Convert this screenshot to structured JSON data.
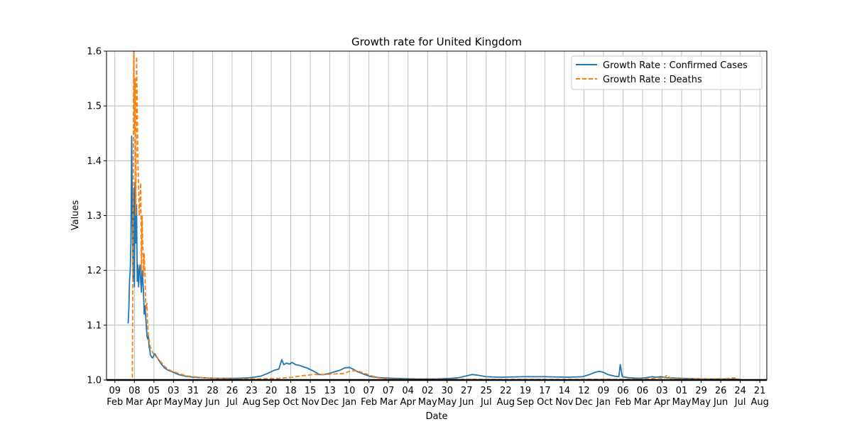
{
  "chart_data": {
    "type": "line",
    "title": "Growth rate for United Kingdom",
    "xlabel": "Date",
    "ylabel": "Values",
    "ylim": [
      1.0,
      1.6
    ],
    "xlim": [
      "2020-01-28",
      "2022-08-31"
    ],
    "yticks": [
      "1.0",
      "1.1",
      "1.2",
      "1.3",
      "1.4",
      "1.5",
      "1.6"
    ],
    "grid": true,
    "legend_position": "top-right",
    "xticks": [
      {
        "date": "2020-02-09",
        "day": "09",
        "month": "Feb"
      },
      {
        "date": "2020-03-08",
        "day": "08",
        "month": "Mar"
      },
      {
        "date": "2020-04-05",
        "day": "05",
        "month": "Apr"
      },
      {
        "date": "2020-05-03",
        "day": "03",
        "month": "May"
      },
      {
        "date": "2020-05-31",
        "day": "31",
        "month": "May"
      },
      {
        "date": "2020-06-28",
        "day": "28",
        "month": "Jun"
      },
      {
        "date": "2020-07-26",
        "day": "26",
        "month": "Jul"
      },
      {
        "date": "2020-08-23",
        "day": "23",
        "month": "Aug"
      },
      {
        "date": "2020-09-20",
        "day": "20",
        "month": "Sep"
      },
      {
        "date": "2020-10-18",
        "day": "18",
        "month": "Oct"
      },
      {
        "date": "2020-11-15",
        "day": "15",
        "month": "Nov"
      },
      {
        "date": "2020-12-13",
        "day": "13",
        "month": "Dec"
      },
      {
        "date": "2021-01-10",
        "day": "10",
        "month": "Jan"
      },
      {
        "date": "2021-02-07",
        "day": "07",
        "month": "Feb"
      },
      {
        "date": "2021-03-07",
        "day": "07",
        "month": "Mar"
      },
      {
        "date": "2021-04-04",
        "day": "04",
        "month": "Apr"
      },
      {
        "date": "2021-05-02",
        "day": "02",
        "month": "May"
      },
      {
        "date": "2021-05-30",
        "day": "30",
        "month": "May"
      },
      {
        "date": "2021-06-27",
        "day": "27",
        "month": "Jun"
      },
      {
        "date": "2021-07-25",
        "day": "25",
        "month": "Jul"
      },
      {
        "date": "2021-08-22",
        "day": "22",
        "month": "Aug"
      },
      {
        "date": "2021-09-19",
        "day": "19",
        "month": "Sep"
      },
      {
        "date": "2021-10-17",
        "day": "17",
        "month": "Oct"
      },
      {
        "date": "2021-11-14",
        "day": "14",
        "month": "Nov"
      },
      {
        "date": "2021-12-12",
        "day": "12",
        "month": "Dec"
      },
      {
        "date": "2022-01-09",
        "day": "09",
        "month": "Jan"
      },
      {
        "date": "2022-02-06",
        "day": "06",
        "month": "Feb"
      },
      {
        "date": "2022-03-06",
        "day": "06",
        "month": "Mar"
      },
      {
        "date": "2022-04-03",
        "day": "03",
        "month": "Apr"
      },
      {
        "date": "2022-05-01",
        "day": "01",
        "month": "May"
      },
      {
        "date": "2022-05-29",
        "day": "29",
        "month": "May"
      },
      {
        "date": "2022-06-26",
        "day": "26",
        "month": "Jun"
      },
      {
        "date": "2022-07-24",
        "day": "24",
        "month": "Jul"
      },
      {
        "date": "2022-08-21",
        "day": "21",
        "month": "Aug"
      }
    ],
    "series": [
      {
        "name": "Growth Rate : Confirmed Cases",
        "color": "#1f77b4",
        "style": "solid",
        "points": [
          [
            "2020-02-28",
            1.103
          ],
          [
            "2020-02-29",
            1.13
          ],
          [
            "2020-03-01",
            1.18
          ],
          [
            "2020-03-02",
            1.2
          ],
          [
            "2020-03-03",
            1.25
          ],
          [
            "2020-03-04",
            1.445
          ],
          [
            "2020-03-05",
            1.3
          ],
          [
            "2020-03-06",
            1.18
          ],
          [
            "2020-03-07",
            1.35
          ],
          [
            "2020-03-08",
            1.17
          ],
          [
            "2020-03-09",
            1.36
          ],
          [
            "2020-03-10",
            1.25
          ],
          [
            "2020-03-11",
            1.32
          ],
          [
            "2020-03-12",
            1.18
          ],
          [
            "2020-03-13",
            1.21
          ],
          [
            "2020-03-14",
            1.17
          ],
          [
            "2020-03-15",
            1.2
          ],
          [
            "2020-03-16",
            1.21
          ],
          [
            "2020-03-17",
            1.18
          ],
          [
            "2020-03-18",
            1.16
          ],
          [
            "2020-03-19",
            1.2
          ],
          [
            "2020-03-20",
            1.185
          ],
          [
            "2020-03-21",
            1.16
          ],
          [
            "2020-03-22",
            1.12
          ],
          [
            "2020-03-23",
            1.135
          ],
          [
            "2020-03-24",
            1.12
          ],
          [
            "2020-03-25",
            1.1
          ],
          [
            "2020-03-26",
            1.08
          ],
          [
            "2020-03-27",
            1.075
          ],
          [
            "2020-03-28",
            1.08
          ],
          [
            "2020-03-29",
            1.06
          ],
          [
            "2020-03-30",
            1.055
          ],
          [
            "2020-03-31",
            1.045
          ],
          [
            "2020-04-03",
            1.04
          ],
          [
            "2020-04-06",
            1.048
          ],
          [
            "2020-04-10",
            1.04
          ],
          [
            "2020-04-15",
            1.03
          ],
          [
            "2020-04-20",
            1.022
          ],
          [
            "2020-04-25",
            1.018
          ],
          [
            "2020-05-01",
            1.015
          ],
          [
            "2020-05-10",
            1.01
          ],
          [
            "2020-05-20",
            1.007
          ],
          [
            "2020-06-01",
            1.005
          ],
          [
            "2020-06-15",
            1.004
          ],
          [
            "2020-07-01",
            1.003
          ],
          [
            "2020-08-01",
            1.003
          ],
          [
            "2020-08-20",
            1.004
          ],
          [
            "2020-09-05",
            1.007
          ],
          [
            "2020-09-15",
            1.012
          ],
          [
            "2020-09-25",
            1.018
          ],
          [
            "2020-10-01",
            1.02
          ],
          [
            "2020-10-05",
            1.037
          ],
          [
            "2020-10-08",
            1.028
          ],
          [
            "2020-10-12",
            1.031
          ],
          [
            "2020-10-16",
            1.029
          ],
          [
            "2020-10-20",
            1.032
          ],
          [
            "2020-10-25",
            1.028
          ],
          [
            "2020-11-01",
            1.026
          ],
          [
            "2020-11-05",
            1.024
          ],
          [
            "2020-11-10",
            1.022
          ],
          [
            "2020-11-20",
            1.016
          ],
          [
            "2020-11-28",
            1.01
          ],
          [
            "2020-12-05",
            1.01
          ],
          [
            "2020-12-12",
            1.012
          ],
          [
            "2020-12-20",
            1.015
          ],
          [
            "2020-12-28",
            1.018
          ],
          [
            "2021-01-03",
            1.022
          ],
          [
            "2021-01-10",
            1.023
          ],
          [
            "2021-01-15",
            1.02
          ],
          [
            "2021-01-22",
            1.015
          ],
          [
            "2021-02-01",
            1.01
          ],
          [
            "2021-02-10",
            1.006
          ],
          [
            "2021-02-25",
            1.004
          ],
          [
            "2021-03-15",
            1.003
          ],
          [
            "2021-04-15",
            1.002
          ],
          [
            "2021-05-15",
            1.002
          ],
          [
            "2021-06-05",
            1.003
          ],
          [
            "2021-06-15",
            1.004
          ],
          [
            "2021-06-25",
            1.007
          ],
          [
            "2021-07-05",
            1.01
          ],
          [
            "2021-07-12",
            1.009
          ],
          [
            "2021-07-25",
            1.006
          ],
          [
            "2021-08-15",
            1.005
          ],
          [
            "2021-09-15",
            1.006
          ],
          [
            "2021-10-17",
            1.006
          ],
          [
            "2021-11-20",
            1.005
          ],
          [
            "2021-12-10",
            1.006
          ],
          [
            "2021-12-20",
            1.01
          ],
          [
            "2021-12-28",
            1.014
          ],
          [
            "2022-01-03",
            1.016
          ],
          [
            "2022-01-09",
            1.014
          ],
          [
            "2022-01-15",
            1.01
          ],
          [
            "2022-01-25",
            1.007
          ],
          [
            "2022-01-31",
            1.006
          ],
          [
            "2022-02-02",
            1.028
          ],
          [
            "2022-02-05",
            1.006
          ],
          [
            "2022-02-15",
            1.004
          ],
          [
            "2022-03-01",
            1.003
          ],
          [
            "2022-03-10",
            1.004
          ],
          [
            "2022-03-20",
            1.006
          ],
          [
            "2022-03-25",
            1.005
          ],
          [
            "2022-04-01",
            1.006
          ],
          [
            "2022-04-10",
            1.004
          ],
          [
            "2022-05-01",
            1.003
          ],
          [
            "2022-06-01",
            1.002
          ],
          [
            "2022-07-01",
            1.002
          ],
          [
            "2022-07-24",
            1.001
          ]
        ]
      },
      {
        "name": "Growth Rate : Deaths",
        "color": "#ff7f0e",
        "style": "dashed",
        "points": [
          [
            "2020-02-28",
            1.0
          ],
          [
            "2020-03-05",
            1.0
          ],
          [
            "2020-03-06",
            1.26
          ],
          [
            "2020-03-07",
            1.6
          ],
          [
            "2020-03-08",
            1.45
          ],
          [
            "2020-03-09",
            1.55
          ],
          [
            "2020-03-10",
            1.3
          ],
          [
            "2020-03-11",
            1.59
          ],
          [
            "2020-03-12",
            1.5
          ],
          [
            "2020-03-13",
            1.4
          ],
          [
            "2020-03-14",
            1.35
          ],
          [
            "2020-03-15",
            1.3
          ],
          [
            "2020-03-16",
            1.33
          ],
          [
            "2020-03-17",
            1.36
          ],
          [
            "2020-03-18",
            1.2
          ],
          [
            "2020-03-19",
            1.3
          ],
          [
            "2020-03-20",
            1.25
          ],
          [
            "2020-03-21",
            1.19
          ],
          [
            "2020-03-22",
            1.23
          ],
          [
            "2020-03-23",
            1.2
          ],
          [
            "2020-03-24",
            1.14
          ],
          [
            "2020-03-25",
            1.13
          ],
          [
            "2020-03-26",
            1.14
          ],
          [
            "2020-03-27",
            1.1
          ],
          [
            "2020-03-28",
            1.08
          ],
          [
            "2020-03-29",
            1.075
          ],
          [
            "2020-03-30",
            1.065
          ],
          [
            "2020-03-31",
            1.06
          ],
          [
            "2020-04-03",
            1.05
          ],
          [
            "2020-04-06",
            1.045
          ],
          [
            "2020-04-10",
            1.04
          ],
          [
            "2020-04-15",
            1.033
          ],
          [
            "2020-04-20",
            1.025
          ],
          [
            "2020-04-25",
            1.02
          ],
          [
            "2020-05-01",
            1.016
          ],
          [
            "2020-05-10",
            1.012
          ],
          [
            "2020-05-20",
            1.008
          ],
          [
            "2020-06-01",
            1.006
          ],
          [
            "2020-06-15",
            1.004
          ],
          [
            "2020-07-01",
            1.003
          ],
          [
            "2020-08-01",
            1.002
          ],
          [
            "2020-09-01",
            1.002
          ],
          [
            "2020-10-01",
            1.003
          ],
          [
            "2020-10-20",
            1.005
          ],
          [
            "2020-11-05",
            1.008
          ],
          [
            "2020-11-20",
            1.01
          ],
          [
            "2020-12-05",
            1.01
          ],
          [
            "2020-12-20",
            1.011
          ],
          [
            "2021-01-03",
            1.012
          ],
          [
            "2021-01-10",
            1.016
          ],
          [
            "2021-01-18",
            1.017
          ],
          [
            "2021-01-25",
            1.015
          ],
          [
            "2021-02-01",
            1.012
          ],
          [
            "2021-02-10",
            1.008
          ],
          [
            "2021-02-20",
            1.004
          ],
          [
            "2021-03-05",
            1.002
          ],
          [
            "2021-04-01",
            1.001
          ],
          [
            "2021-06-01",
            1.001
          ],
          [
            "2021-08-01",
            1.001
          ],
          [
            "2021-10-01",
            1.001
          ],
          [
            "2021-12-01",
            1.001
          ],
          [
            "2022-02-01",
            1.001
          ],
          [
            "2022-03-15",
            1.002
          ],
          [
            "2022-03-28",
            1.004
          ],
          [
            "2022-04-05",
            1.003
          ],
          [
            "2022-04-10",
            1.009
          ],
          [
            "2022-04-15",
            1.003
          ],
          [
            "2022-05-01",
            1.002
          ],
          [
            "2022-06-01",
            1.002
          ],
          [
            "2022-07-01",
            1.002
          ],
          [
            "2022-07-15",
            1.004
          ],
          [
            "2022-07-24",
            1.001
          ]
        ]
      }
    ]
  }
}
